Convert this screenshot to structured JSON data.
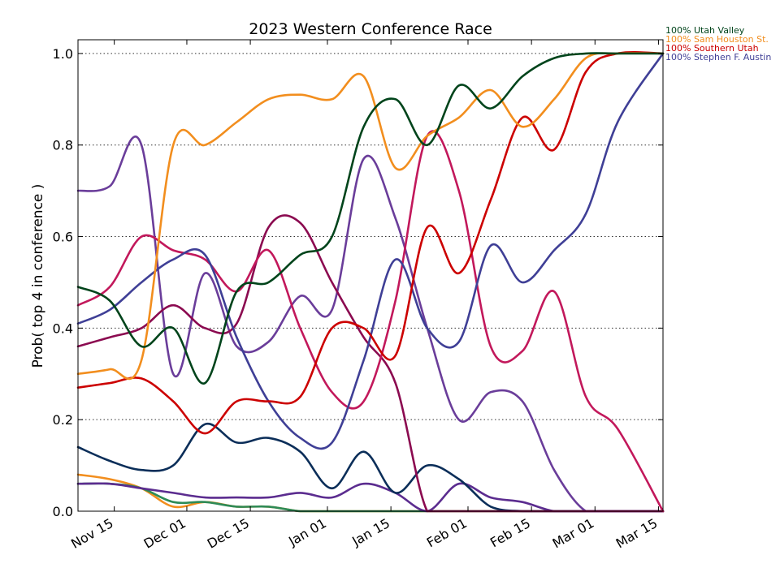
{
  "chart_data": {
    "type": "line",
    "title": "2023 Western Conference Race",
    "ylabel": "Prob( top 4 in conference )",
    "xlabel": "",
    "x_ticks": [
      "Nov 15",
      "Dec 01",
      "Dec 15",
      "Jan 01",
      "Jan 15",
      "Feb 01",
      "Feb 15",
      "Mar 01",
      "Mar 15"
    ],
    "y_ticks": [
      "0.0",
      "0.2",
      "0.4",
      "0.6",
      "0.8",
      "1.0"
    ],
    "ylim": [
      0,
      1.03
    ],
    "xlim": [
      "Nov 07",
      "Mar 16"
    ],
    "grid": "horizontal-dotted",
    "legend": "top-right-outside",
    "legend_entries": [
      {
        "label": "100% Utah Valley",
        "color": "#00441b"
      },
      {
        "label": "100% Sam Houston St.",
        "color": "#f28e1e"
      },
      {
        "label": "100% Southern Utah",
        "color": "#cc0000"
      },
      {
        "label": "100% Stephen F. Austin",
        "color": "#3f3f96"
      }
    ],
    "x_dates": [
      "Nov 07",
      "Nov 14",
      "Nov 21",
      "Nov 28",
      "Dec 05",
      "Dec 12",
      "Dec 19",
      "Dec 26",
      "Jan 02",
      "Jan 09",
      "Jan 16",
      "Jan 23",
      "Jan 30",
      "Feb 06",
      "Feb 13",
      "Feb 20",
      "Feb 27",
      "Mar 06",
      "Mar 16"
    ],
    "series": [
      {
        "name": "Utah Valley",
        "color": "#00441b",
        "values": [
          0.49,
          0.46,
          0.36,
          0.4,
          0.28,
          0.48,
          0.5,
          0.56,
          0.6,
          0.84,
          0.9,
          0.8,
          0.93,
          0.88,
          0.95,
          0.99,
          1.0,
          1.0,
          1.0
        ]
      },
      {
        "name": "Sam Houston St.",
        "color": "#f28e1e",
        "values": [
          0.3,
          0.31,
          0.33,
          0.8,
          0.8,
          0.85,
          0.9,
          0.91,
          0.9,
          0.95,
          0.75,
          0.82,
          0.86,
          0.92,
          0.84,
          0.9,
          0.99,
          1.0,
          1.0
        ]
      },
      {
        "name": "Southern Utah",
        "color": "#cc0000",
        "values": [
          0.27,
          0.28,
          0.29,
          0.24,
          0.17,
          0.24,
          0.24,
          0.25,
          0.4,
          0.4,
          0.34,
          0.62,
          0.52,
          0.68,
          0.86,
          0.79,
          0.96,
          1.0,
          1.0
        ]
      },
      {
        "name": "Stephen F. Austin",
        "color": "#3f3f96",
        "values": [
          0.41,
          0.44,
          0.5,
          0.55,
          0.56,
          0.38,
          0.24,
          0.16,
          0.15,
          0.33,
          0.55,
          0.4,
          0.37,
          0.58,
          0.5,
          0.57,
          0.65,
          0.85,
          1.0
        ]
      },
      {
        "name": "",
        "color": "#c2185b",
        "values": [
          0.45,
          0.49,
          0.6,
          0.57,
          0.55,
          0.48,
          0.57,
          0.4,
          0.26,
          0.24,
          0.46,
          0.82,
          0.7,
          0.36,
          0.35,
          0.48,
          0.25,
          0.18,
          0.0
        ]
      },
      {
        "name": "",
        "color": "#8b0a50",
        "values": [
          0.36,
          0.38,
          0.4,
          0.45,
          0.4,
          0.41,
          0.62,
          0.63,
          0.5,
          0.38,
          0.28,
          0.0,
          0.0,
          0.0,
          0.0,
          0.0,
          0.0,
          0.0,
          0.0
        ]
      },
      {
        "name": "",
        "color": "#6a3d9a",
        "values": [
          0.7,
          0.71,
          0.8,
          0.3,
          0.52,
          0.36,
          0.37,
          0.47,
          0.44,
          0.77,
          0.64,
          0.4,
          0.2,
          0.26,
          0.24,
          0.09,
          0.0,
          0.0,
          0.0
        ]
      },
      {
        "name": "",
        "color": "#0b2e59",
        "values": [
          0.14,
          0.11,
          0.09,
          0.1,
          0.19,
          0.15,
          0.16,
          0.13,
          0.05,
          0.13,
          0.04,
          0.1,
          0.07,
          0.01,
          0.0,
          0.0,
          0.0,
          0.0,
          0.0
        ]
      },
      {
        "name": "",
        "color": "#5b2c8f",
        "values": [
          0.06,
          0.06,
          0.05,
          0.04,
          0.03,
          0.03,
          0.03,
          0.04,
          0.03,
          0.06,
          0.04,
          0.0,
          0.06,
          0.03,
          0.02,
          0.0,
          0.0,
          0.0,
          0.0
        ]
      },
      {
        "name": "",
        "color": "#2e8b57",
        "values": [
          0.06,
          0.06,
          0.05,
          0.02,
          0.02,
          0.01,
          0.01,
          0.0,
          0.0,
          0.0,
          0.0,
          0.0,
          0.0,
          0.0,
          0.0,
          0.0,
          0.0,
          0.0,
          0.0
        ]
      },
      {
        "name": "",
        "color": "#f28e1e",
        "values": [
          0.08,
          0.07,
          0.05,
          0.01,
          0.02,
          0.01,
          0.01,
          0.0,
          0.0,
          0.0,
          0.0,
          0.0,
          0.0,
          0.0,
          0.0,
          0.0,
          0.0,
          0.0,
          0.0
        ]
      }
    ]
  }
}
